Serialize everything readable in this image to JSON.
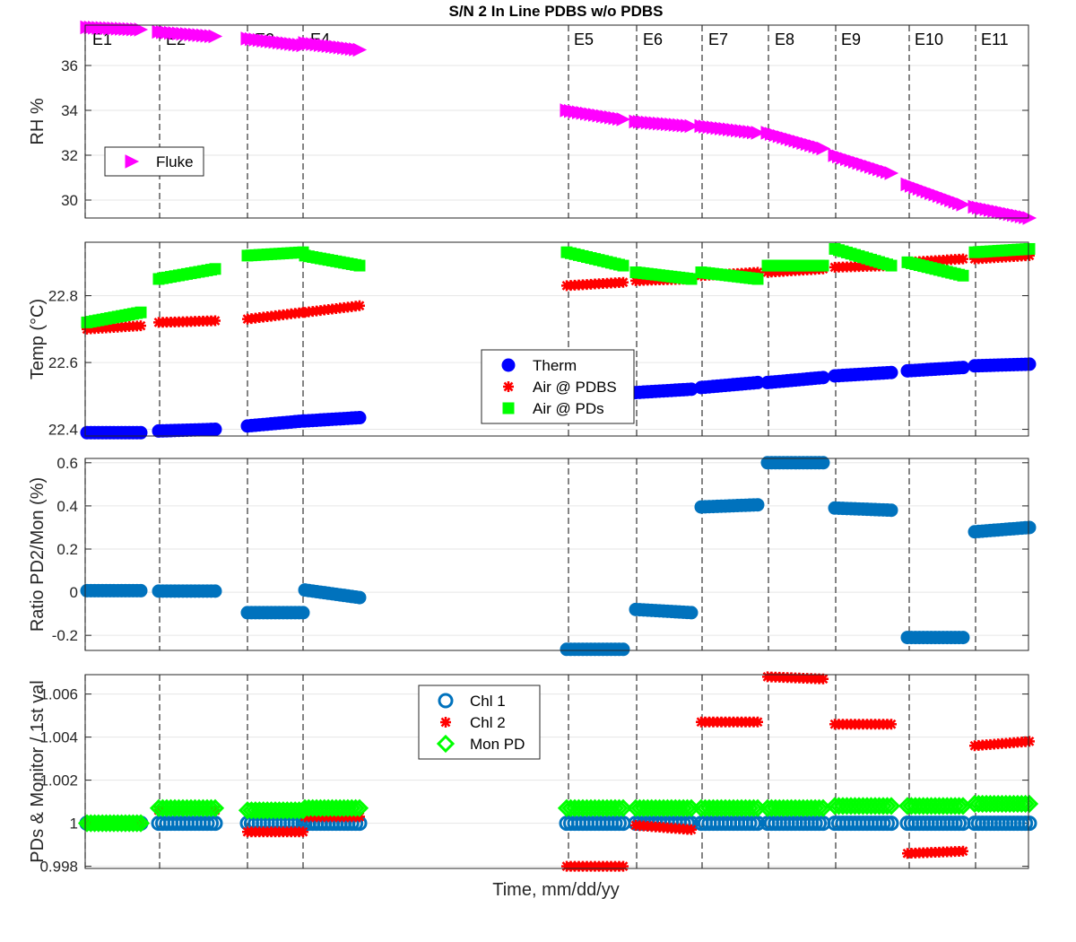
{
  "title": "S/N 2 In Line PDBS w/o PDBS",
  "xlabel": "Time, mm/dd/yy",
  "event_labels": [
    "E1",
    "E2",
    "E3",
    "E4",
    "E5",
    "E6",
    "E7",
    "E8",
    "E9",
    "E10",
    "E11"
  ],
  "chart_data": [
    {
      "type": "scatter",
      "ylabel": "RH %",
      "ylim": [
        29.2,
        37.8
      ],
      "yticks": [
        "30",
        "32",
        "34",
        "36"
      ],
      "yticks_values": [
        30,
        32,
        34,
        36
      ],
      "grid": "horizontal",
      "legend": {
        "placement": "left",
        "entries": [
          "Fluke"
        ]
      },
      "series": [
        {
          "name": "Fluke",
          "marker": "triangle-right",
          "color": "#ff00ff",
          "segments": [
            [
              37.7,
              37.6
            ],
            [
              37.5,
              37.3
            ],
            [
              37.2,
              36.9
            ],
            [
              37.0,
              36.7
            ],
            [
              34.0,
              33.6
            ],
            [
              33.5,
              33.3
            ],
            [
              33.3,
              33.0
            ],
            [
              33.0,
              32.3
            ],
            [
              32.0,
              31.2
            ],
            [
              30.7,
              29.8
            ],
            [
              29.7,
              29.2
            ]
          ]
        }
      ]
    },
    {
      "type": "scatter",
      "ylabel": "Temp (°C)",
      "ylim": [
        22.38,
        22.96
      ],
      "yticks": [
        "22.4",
        "22.6",
        "22.8"
      ],
      "yticks_values": [
        22.4,
        22.6,
        22.8
      ],
      "grid": "horizontal",
      "legend": {
        "placement": "center",
        "entries": [
          "Therm",
          "Air @ PDBS",
          "Air @ PDs"
        ]
      },
      "series": [
        {
          "name": "Therm",
          "marker": "circle-filled",
          "color": "#0000ff",
          "segments": [
            [
              22.39,
              22.39
            ],
            [
              22.395,
              22.4
            ],
            [
              22.41,
              22.425
            ],
            [
              22.425,
              22.435
            ],
            null,
            [
              22.51,
              22.52
            ],
            [
              22.525,
              22.54
            ],
            [
              22.54,
              22.555
            ],
            [
              22.56,
              22.57
            ],
            [
              22.575,
              22.585
            ],
            [
              22.59,
              22.595
            ]
          ]
        },
        {
          "name": "Air @ PDBS",
          "marker": "asterisk",
          "color": "#ff0000",
          "segments": [
            [
              22.7,
              22.71
            ],
            [
              22.72,
              22.725
            ],
            [
              22.73,
              22.75
            ],
            [
              22.75,
              22.77
            ],
            [
              22.83,
              22.84
            ],
            [
              22.845,
              22.85
            ],
            [
              22.86,
              22.87
            ],
            [
              22.87,
              22.88
            ],
            [
              22.885,
              22.89
            ],
            [
              22.9,
              22.91
            ],
            [
              22.91,
              22.92
            ]
          ]
        },
        {
          "name": "Air @ PDs",
          "marker": "square-filled",
          "color": "#00ff00",
          "segments": [
            [
              22.72,
              22.75
            ],
            [
              22.85,
              22.88
            ],
            [
              22.92,
              22.93
            ],
            [
              22.92,
              22.89
            ],
            [
              22.93,
              22.89
            ],
            [
              22.87,
              22.85
            ],
            [
              22.87,
              22.85
            ],
            [
              22.89,
              22.89
            ],
            [
              22.94,
              22.89
            ],
            [
              22.9,
              22.86
            ],
            [
              22.93,
              22.94
            ]
          ]
        }
      ]
    },
    {
      "type": "scatter",
      "ylabel": "Ratio PD2/Mon (%)",
      "ylim": [
        -0.27,
        0.62
      ],
      "yticks": [
        "-0.2",
        "0",
        "0.2",
        "0.4",
        "0.6"
      ],
      "yticks_values": [
        -0.2,
        0,
        0.2,
        0.4,
        0.6
      ],
      "grid": "horizontal",
      "series": [
        {
          "name": "",
          "marker": "circle-filled",
          "color": "#0072bd",
          "segments": [
            [
              0.007,
              0.007
            ],
            [
              0.005,
              0.005
            ],
            [
              -0.095,
              -0.095
            ],
            [
              0.01,
              -0.025
            ],
            [
              -0.265,
              -0.265
            ],
            [
              -0.08,
              -0.095
            ],
            [
              0.395,
              0.405
            ],
            [
              0.6,
              0.6
            ],
            [
              0.39,
              0.38
            ],
            [
              -0.21,
              -0.21
            ],
            [
              0.28,
              0.3
            ]
          ]
        }
      ]
    },
    {
      "type": "scatter",
      "ylabel": "PDs & Monitor / 1st val",
      "ylim": [
        0.9979,
        1.0069
      ],
      "yticks": [
        "0.998",
        "1",
        "1.002",
        "1.004",
        "1.006"
      ],
      "yticks_values": [
        0.998,
        1.0,
        1.002,
        1.004,
        1.006
      ],
      "grid": "horizontal",
      "legend": {
        "placement": "top-center",
        "entries": [
          "Chl 1",
          "Chl 2",
          "Mon PD"
        ]
      },
      "series": [
        {
          "name": "Chl 1",
          "marker": "circle-open",
          "color": "#0072bd",
          "segments": [
            [
              1.0,
              1.0
            ],
            [
              1.0,
              1.0
            ],
            [
              1.0,
              1.0
            ],
            [
              1.0,
              1.0
            ],
            [
              1.0,
              1.0
            ],
            [
              1.0,
              1.0
            ],
            [
              1.0,
              1.0
            ],
            [
              1.0,
              1.0
            ],
            [
              1.0,
              1.0
            ],
            [
              1.0,
              1.0
            ],
            [
              1.0,
              1.0
            ]
          ]
        },
        {
          "name": "Chl 2",
          "marker": "asterisk",
          "color": "#ff0000",
          "segments": [
            [
              1.0,
              1.0
            ],
            [
              1.0006,
              1.0006
            ],
            [
              0.9996,
              0.9996
            ],
            [
              1.0003,
              1.0003
            ],
            [
              0.998,
              0.998
            ],
            [
              0.9999,
              0.9997
            ],
            [
              1.0047,
              1.0047
            ],
            [
              1.0068,
              1.0067
            ],
            [
              1.0046,
              1.0046
            ],
            [
              0.9986,
              0.9987
            ],
            [
              1.0036,
              1.0038
            ]
          ]
        },
        {
          "name": "Mon PD",
          "marker": "diamond-open",
          "color": "#00ff00",
          "segments": [
            [
              1.0,
              1.0
            ],
            [
              1.0007,
              1.0007
            ],
            [
              1.0006,
              1.0006
            ],
            [
              1.0007,
              1.0007
            ],
            [
              1.0007,
              1.0007
            ],
            [
              1.0007,
              1.0007
            ],
            [
              1.0007,
              1.0007
            ],
            [
              1.0007,
              1.0007
            ],
            [
              1.0008,
              1.0008
            ],
            [
              1.0008,
              1.0008
            ],
            [
              1.0009,
              1.0009
            ]
          ]
        }
      ]
    }
  ]
}
